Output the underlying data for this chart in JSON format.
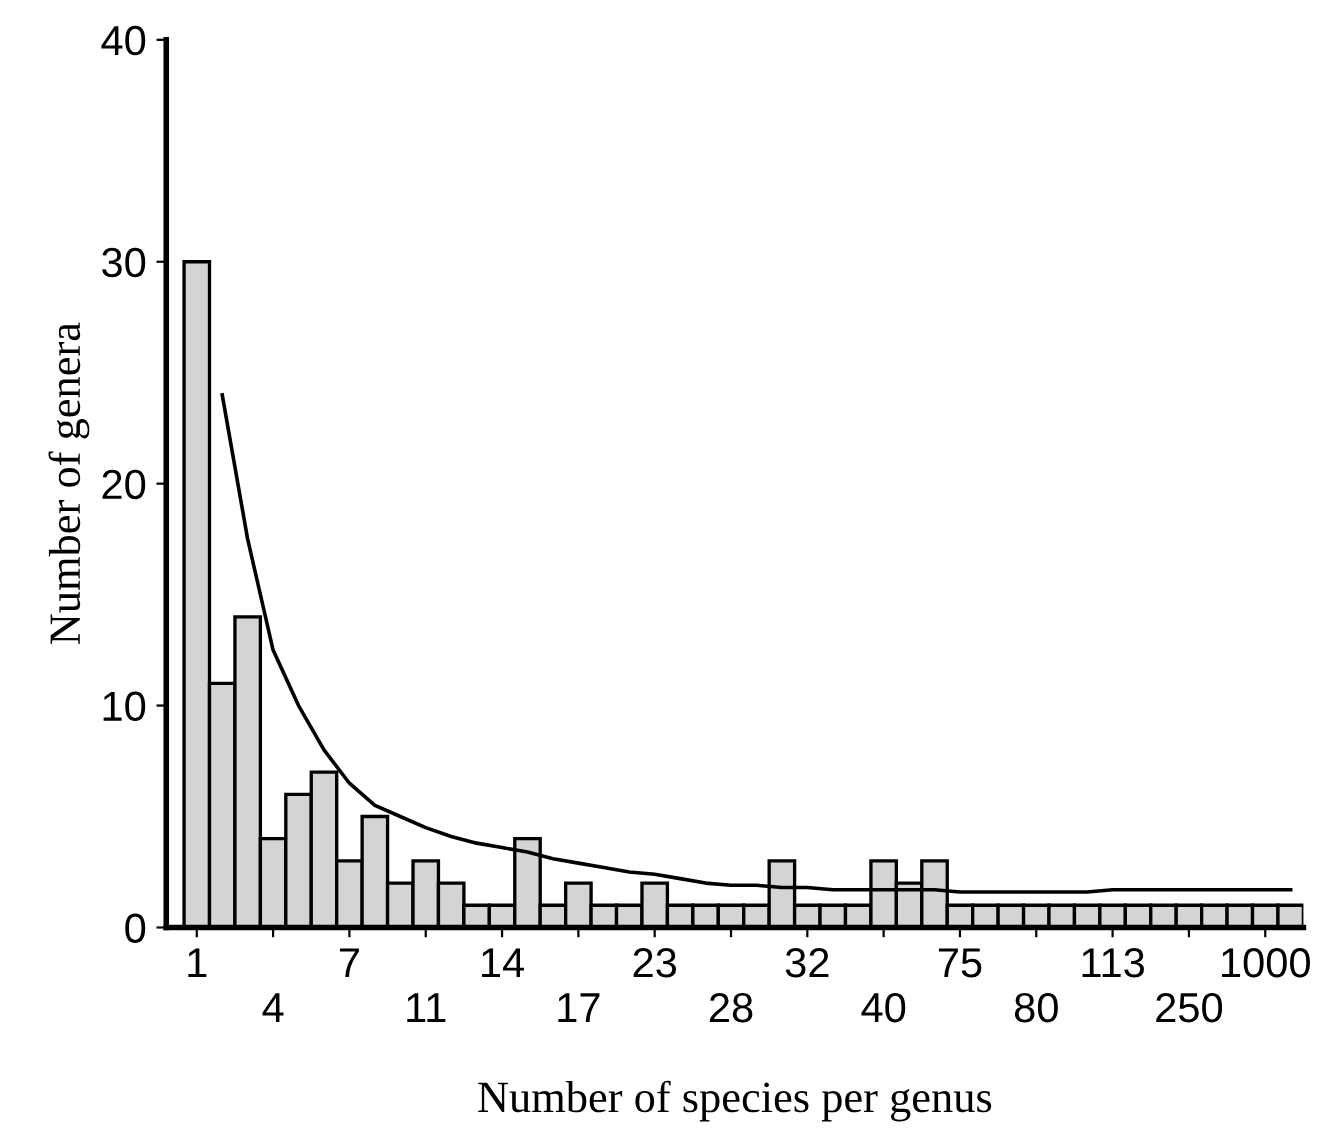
{
  "chart_data": {
    "type": "bar",
    "xlabel": "Number of species per genus",
    "ylabel": "Number of genera",
    "categories": [
      "1",
      null,
      null,
      "4",
      null,
      null,
      "7",
      null,
      null,
      "11",
      null,
      null,
      "14",
      null,
      null,
      "17",
      null,
      null,
      "23",
      null,
      null,
      "28",
      null,
      null,
      "32",
      null,
      null,
      "40",
      null,
      null,
      "75",
      null,
      null,
      "80",
      null,
      null,
      "113",
      null,
      null,
      "250",
      null,
      null,
      "1000",
      null
    ],
    "series": [
      {
        "color": "#d4d4d4",
        "values": [
          30,
          11,
          14,
          4,
          6,
          7,
          3,
          5,
          2,
          3,
          2,
          1,
          1,
          4,
          1,
          2,
          1,
          1,
          2,
          1,
          1,
          1,
          1,
          3,
          1,
          1,
          1,
          3,
          2,
          3,
          1,
          1,
          1,
          1,
          1,
          1,
          1,
          1,
          1,
          1,
          1,
          1,
          1,
          1
        ]
      },
      {
        "type": "line",
        "color": "#000000",
        "values": [
          null,
          24,
          17.5,
          12.5,
          10,
          8,
          6.5,
          5.5,
          5,
          4.5,
          4.1,
          3.8,
          3.6,
          3.4,
          3.1,
          2.9,
          2.7,
          2.5,
          2.4,
          2.2,
          2,
          1.9,
          1.9,
          1.8,
          1.8,
          1.7,
          1.7,
          1.7,
          1.7,
          1.7,
          1.6,
          1.6,
          1.6,
          1.6,
          1.6,
          1.6,
          1.7,
          1.7,
          1.7,
          1.7,
          1.7,
          1.7,
          1.7,
          1.7
        ]
      }
    ],
    "ylim": [
      0,
      40
    ],
    "yticks": [
      0,
      10,
      20,
      30,
      40
    ],
    "grid": false,
    "legend": false,
    "marker": "none",
    "line_style": "solid"
  }
}
